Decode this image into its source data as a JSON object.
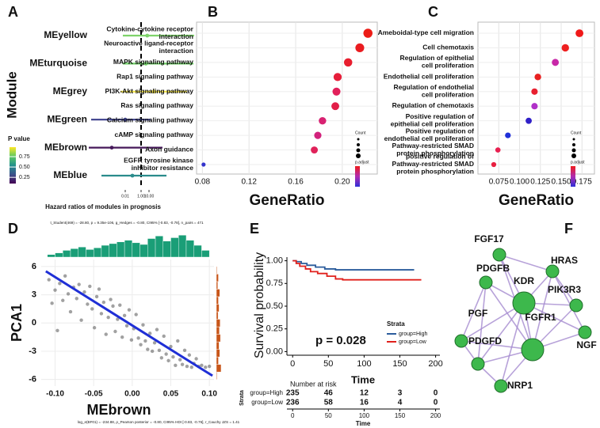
{
  "panels": [
    "A",
    "B",
    "C",
    "D",
    "E",
    "F"
  ],
  "chart_data": [
    {
      "type": "forest",
      "xlabel": "Hazard ratios of modules in prognosis",
      "ylabel": "Module",
      "categories": [
        "MEyellow",
        "MEturquoise",
        "MEgrey",
        "MEgreen",
        "MEbrown",
        "MEblue"
      ],
      "values": [
        6,
        4,
        40,
        0.01,
        0.0002,
        0.08
      ],
      "lower": [
        0.005,
        0.005,
        0.0025,
        5e-07,
        2.5e-07,
        1e-05
      ],
      "upper": [
        5000000,
        4000000,
        600000,
        16,
        500,
        1600
      ],
      "colors": [
        "#7ed36a",
        "#6cce63",
        "#f2e34a",
        "#3b3f8c",
        "#46185a",
        "#2a8c8c"
      ],
      "log_x": true,
      "xlim": [
        1e-07,
        10000000
      ],
      "xticks": [
        {
          "value": 0.01,
          "label": "0.01"
        },
        {
          "value": 1,
          "label": "1.00"
        },
        {
          "value": 10,
          "label": "10.00"
        }
      ],
      "reference": 1,
      "legend": {
        "title": "P value",
        "lim": [
          0.1,
          0.98
        ],
        "ticks": [
          {
            "value": 0.25,
            "label": "0.25"
          },
          {
            "value": 0.5,
            "label": "0.50"
          },
          {
            "value": 0.75,
            "label": "0.75"
          }
        ],
        "colors": [
          "#440154",
          "#3b528b",
          "#21918c",
          "#5ec962",
          "#fde725"
        ]
      }
    },
    {
      "type": "dot",
      "xlabel": "GeneRatio",
      "size_title": "Count",
      "color_title": "p.adjust",
      "categories": [
        "Cytokine-cytokine receptor\ninteraction",
        "Neuroactive ligand-receptor\ninteraction",
        "MAPK signaling pathway",
        "Rap1 signaling pathway",
        "PI3K-Akt signaling pathway",
        "Ras signaling pathway",
        "Calcium signaling pathway",
        "cAMP signaling pathway",
        "Axon guidance",
        "EGFR tyrosine kinase\ninhibitor resistance"
      ],
      "values": [
        0.222,
        0.215,
        0.205,
        0.196,
        0.195,
        0.194,
        0.183,
        0.179,
        0.176,
        0.081
      ],
      "counts": [
        30,
        28,
        25,
        24,
        23,
        22,
        20,
        19,
        18,
        6
      ],
      "colors": [
        "#ec1c16",
        "#ea1c20",
        "#e81e2e",
        "#e61e3a",
        "#e2205a",
        "#e21e48",
        "#d82272",
        "#d2227c",
        "#e0225a",
        "#3333cc"
      ],
      "xlim": [
        0.075,
        0.23
      ],
      "xticks": [
        0.08,
        0.12,
        0.16,
        {
          "value": 0.2,
          "label": "0.20"
        }
      ]
    },
    {
      "type": "dot",
      "xlabel": "GeneRatio",
      "size_title": "Count",
      "color_title": "p.adjust",
      "categories": [
        "Ameboidal-type cell migration",
        "Cell chemotaxis",
        "Regulation of epithelial\ncell proliferation",
        "Endothelial cell proliferation",
        "Regulation of endothelial\ncell proliferation",
        "Regulation of chemotaxis",
        "Positive regulation of\nepithelial cell proliferation",
        "Positive regulation of\nendothelial cell proliferation",
        "Pathway-restricted SMAD\nprotein phosphorylation",
        "positive regulation of\nPathway-restricted SMAD\nprotein phosphorylation"
      ],
      "values": [
        0.172,
        0.155,
        0.143,
        0.122,
        0.118,
        0.118,
        0.111,
        0.086,
        0.074,
        0.069
      ],
      "counts": [
        22,
        20,
        18,
        16,
        15,
        15,
        14,
        12,
        10,
        9
      ],
      "colors": [
        "#f01818",
        "#ee2020",
        "#c828a8",
        "#e82020",
        "#e82030",
        "#b030c8",
        "#3020c8",
        "#2030d8",
        "#e82050",
        "#e82040"
      ],
      "xlim": [
        0.05,
        0.19
      ],
      "xticks": [
        0.075,
        {
          "value": 0.1,
          "label": "0.100"
        },
        0.125,
        {
          "value": 0.15,
          "label": "0.150"
        },
        0.175
      ]
    },
    {
      "type": "scatter",
      "xlabel": "MEbrown",
      "ylabel": "PCA1",
      "subtitle": "t_Student(469) = -28.80, p = 9.35e-106, g_Hedges = -0.80, CI95% [-0.83, -0.78], n_pairs = 471",
      "caption": "log_e(BF01) = -234.88, ρ_Pearson posterior = -0.80, CI95% HDI [-0.83, -0.76], r_Cauchy JZS = 1.41",
      "color": "#444444",
      "x": [
        -0.108,
        -0.104,
        -0.1,
        -0.097,
        -0.094,
        -0.09,
        -0.087,
        -0.083,
        -0.08,
        -0.076,
        -0.072,
        -0.069,
        -0.066,
        -0.062,
        -0.058,
        -0.055,
        -0.052,
        -0.049,
        -0.046,
        -0.043,
        -0.04,
        -0.037,
        -0.034,
        -0.031,
        -0.028,
        -0.025,
        -0.022,
        -0.019,
        -0.016,
        -0.013,
        -0.01,
        -0.007,
        -0.004,
        -0.001,
        0.002,
        0.005,
        0.008,
        0.011,
        0.014,
        0.017,
        0.02,
        0.023,
        0.026,
        0.029,
        0.032,
        0.035,
        0.038,
        0.041,
        0.044,
        0.047,
        0.05,
        0.053,
        0.056,
        0.059,
        0.062,
        0.065,
        0.068,
        0.071,
        0.074,
        0.077,
        0.08,
        0.083,
        0.086,
        0.09,
        0.095,
        0.1
      ],
      "y": [
        4.6,
        2.1,
        3.5,
        -0.8,
        4.2,
        2.4,
        5.0,
        3.1,
        1.2,
        3.8,
        2.6,
        4.1,
        0.3,
        3.3,
        2.0,
        3.9,
        1.5,
        -0.5,
        2.8,
        3.6,
        1.0,
        2.2,
        -1.2,
        0.6,
        2.5,
        1.8,
        -0.9,
        0.4,
        1.9,
        -1.5,
        0.8,
        -0.3,
        1.4,
        -1.8,
        -0.6,
        0.9,
        -1.6,
        -2.3,
        -0.2,
        -1.9,
        -2.8,
        -1.1,
        -3.0,
        -2.1,
        -0.7,
        -2.9,
        -3.7,
        -1.4,
        -3.3,
        -4.0,
        -2.5,
        -3.6,
        -4.5,
        -1.9,
        -3.9,
        -4.4,
        -2.9,
        -4.6,
        -3.4,
        -4.7,
        -4.3,
        -3.8,
        -4.6,
        -4.5,
        -4.7,
        -4.6
      ],
      "xlim": [
        -0.118,
        0.106
      ],
      "ylim": [
        -6.7,
        6.75
      ],
      "xticks": [
        {
          "value": -0.1,
          "label": "-0.10"
        },
        {
          "value": -0.05,
          "label": "-0.05"
        },
        {
          "value": 0,
          "label": "0.00"
        },
        {
          "value": 0.05,
          "label": "0.05"
        },
        {
          "value": 0.1,
          "label": "0.10"
        }
      ],
      "yticks": [
        -6,
        -3,
        0,
        3,
        6
      ],
      "fit": {
        "x": [
          -0.112,
          0.104
        ],
        "y": [
          5.5,
          -5.6
        ],
        "color": "#1f2fd6"
      },
      "top_hist": {
        "color": "#1a9e77",
        "ylim": [
          0,
          30
        ],
        "bins": [
          -0.11,
          -0.1,
          -0.09,
          -0.08,
          -0.07,
          -0.06,
          -0.05,
          -0.04,
          -0.03,
          -0.02,
          -0.01,
          0,
          0.01,
          0.02,
          0.03,
          0.04,
          0.05,
          0.06,
          0.07,
          0.08,
          0.09,
          0.1
        ],
        "counts": [
          3,
          5,
          8,
          10,
          12,
          9,
          11,
          14,
          16,
          18,
          20,
          17,
          15,
          22,
          25,
          19,
          23,
          26,
          20,
          14,
          8
        ]
      },
      "right_hist": {
        "color": "#c8561a",
        "xlim": [
          0,
          40
        ],
        "bins": [
          -6,
          -5.2,
          -4.4,
          -3.6,
          -2.8,
          -2,
          -1.2,
          -0.4,
          0.4,
          1.2,
          2,
          2.8,
          3.6,
          4.4,
          5.2,
          6
        ],
        "counts": [
          2,
          14,
          6,
          10,
          8,
          12,
          9,
          11,
          5,
          8,
          6,
          10,
          4,
          6,
          2
        ]
      }
    },
    {
      "type": "km",
      "xlabel": "Time",
      "ylabel": "Survival probability",
      "legend_title": "Strata",
      "annotation": "p = 0.028",
      "xlim": [
        -8,
        206
      ],
      "xticks": [
        0,
        50,
        100,
        150,
        200
      ],
      "ylim": [
        -0.04,
        1.04
      ],
      "yticks": [
        {
          "value": 0,
          "label": "0.00"
        },
        {
          "value": 0.25,
          "label": "0.25"
        },
        {
          "value": 0.5,
          "label": "0.50"
        },
        {
          "value": 0.75,
          "label": "0.75"
        },
        {
          "value": 1,
          "label": "1.00"
        }
      ],
      "series": [
        {
          "name": "group=High",
          "color": "#2b5c9c",
          "x": [
            0,
            5,
            5,
            12,
            12,
            20,
            20,
            32,
            32,
            45,
            45,
            60,
            60,
            170
          ],
          "values": [
            1,
            1,
            0.99,
            0.99,
            0.97,
            0.97,
            0.95,
            0.95,
            0.93,
            0.93,
            0.91,
            0.91,
            0.9,
            0.9
          ],
          "at_risk": [
            235,
            46,
            12,
            3,
            0
          ]
        },
        {
          "name": "group=Low",
          "color": "#e0201c",
          "x": [
            0,
            5,
            5,
            10,
            10,
            18,
            18,
            25,
            25,
            35,
            35,
            48,
            48,
            60,
            60,
            70,
            70,
            180
          ],
          "values": [
            1,
            1,
            0.97,
            0.97,
            0.94,
            0.94,
            0.91,
            0.91,
            0.88,
            0.88,
            0.86,
            0.86,
            0.83,
            0.83,
            0.8,
            0.8,
            0.79,
            0.79
          ],
          "at_risk": [
            236,
            58,
            16,
            4,
            0
          ]
        }
      ],
      "risk_table": {
        "title": "Number at risk",
        "ylabel": "Strata",
        "xlabel": "Time"
      }
    }
  ],
  "network": {
    "nodes": [
      "FGF17",
      "HRAS",
      "PDGFB",
      "KDR",
      "PIK3R3",
      "PGF",
      "FGFR1",
      "NGF",
      "PDGFD",
      "NRP1"
    ]
  }
}
